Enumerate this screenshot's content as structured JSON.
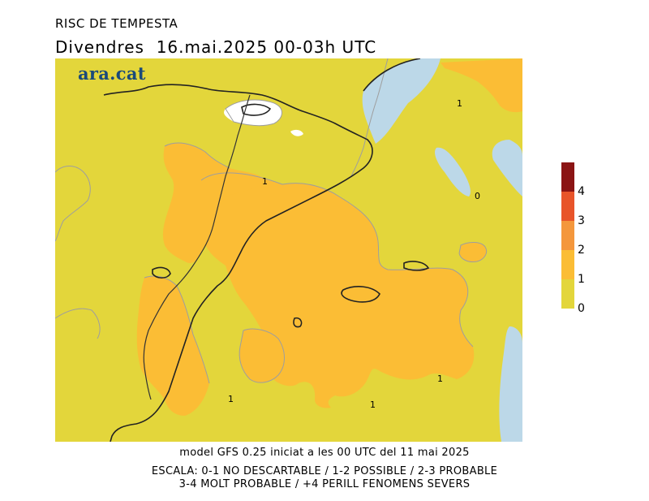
{
  "title": "RISC DE TEMPESTA",
  "subtitle": "Divendres  16.mai.2025 00-03h UTC",
  "logo": "ara.cat",
  "footer": {
    "model_line": "model GFS 0.25 iniciat a les 00 UTC del 11 mai 2025",
    "scale_line1": "ESCALA: 0-1 NO DESCARTABLE / 1-2 POSSIBLE / 2-3 PROBABLE",
    "scale_line2": "3-4 MOLT PROBABLE / +4 PERILL FENOMENS SEVERS"
  },
  "legend": {
    "colors": [
      "#8b1414",
      "#e8542a",
      "#f4973c",
      "#fbbd35",
      "#e3d63b"
    ],
    "ticks": [
      "4",
      "3",
      "2",
      "1",
      "0"
    ]
  },
  "map": {
    "colors": {
      "level0": "#e3d63b",
      "level1": "#fbbd35",
      "sea": "#bcd8e8",
      "snow": "#ffffff"
    },
    "contour_labels": [
      "1",
      "1",
      "0",
      "1",
      "1",
      "1"
    ]
  }
}
